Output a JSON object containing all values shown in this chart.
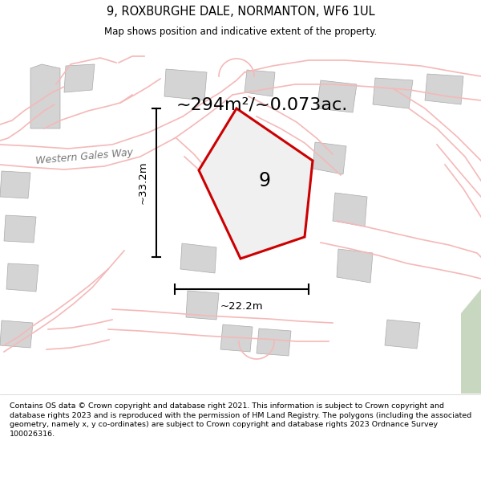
{
  "title_line1": "9, ROXBURGHE DALE, NORMANTON, WF6 1UL",
  "title_line2": "Map shows position and indicative extent of the property.",
  "area_label": "~294m²/~0.073ac.",
  "plot_number": "9",
  "dim_vertical": "~33.2m",
  "dim_horizontal": "~22.2m",
  "road_label": "Western Gales Way",
  "footer_text": "Contains OS data © Crown copyright and database right 2021. This information is subject to Crown copyright and database rights 2023 and is reproduced with the permission of HM Land Registry. The polygons (including the associated geometry, namely x, y co-ordinates) are subject to Crown copyright and database rights 2023 Ordnance Survey 100026316.",
  "map_bg": "#f0f0f0",
  "plot_fill": "#f0f0f0",
  "plot_edge": "#cc0000",
  "building_fill": "#d4d4d4",
  "building_edge": "#aaaaaa",
  "road_color": "#f5b8b8",
  "title_bg": "#ffffff",
  "footer_bg": "#ffffff",
  "green_patch": "#c8d8c0"
}
